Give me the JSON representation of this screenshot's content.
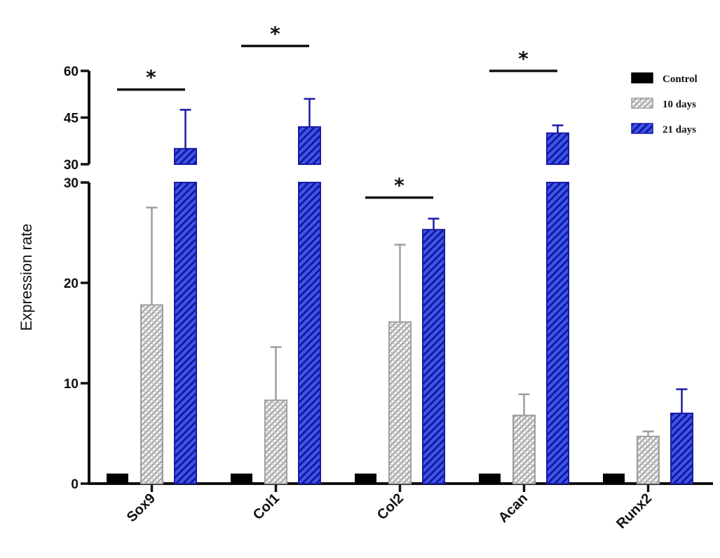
{
  "chart_data": {
    "type": "bar",
    "categories": [
      "Sox9",
      "Col1",
      "Col2",
      "Acan",
      "Runx2"
    ],
    "series": [
      {
        "name": "Control",
        "values": [
          1,
          1,
          1,
          1,
          1
        ],
        "errors": [
          0,
          0,
          0,
          0,
          0
        ],
        "color": "#000000",
        "pattern": "solid"
      },
      {
        "name": "10 days",
        "values": [
          17.8,
          8.3,
          16.1,
          6.8,
          4.7
        ],
        "errors": [
          9.7,
          5.3,
          7.7,
          2.1,
          0.5
        ],
        "color": "#9e9e9e",
        "pattern": "crosshatch"
      },
      {
        "name": "21 days",
        "values": [
          35,
          42,
          25.3,
          40,
          7.0
        ],
        "errors": [
          12.5,
          9,
          1.1,
          2.5,
          2.4
        ],
        "color": "#2e3fe0",
        "pattern": "diagonal"
      }
    ],
    "ylabel": "Expression rate",
    "y_axis": {
      "broken": true,
      "lower": {
        "range": [
          0,
          30
        ],
        "ticks": [
          0,
          10,
          20,
          30
        ]
      },
      "upper": {
        "range": [
          30,
          60
        ],
        "ticks": [
          30,
          45,
          60
        ]
      }
    },
    "significance": [
      {
        "category": "Sox9",
        "label": "*",
        "y": 54
      },
      {
        "category": "Col1",
        "label": "*",
        "y": 68
      },
      {
        "category": "Col2",
        "label": "*",
        "y": 28.5
      },
      {
        "category": "Acan",
        "label": "*",
        "y": 60
      }
    ],
    "legend_position": "top-right",
    "grid": false
  }
}
